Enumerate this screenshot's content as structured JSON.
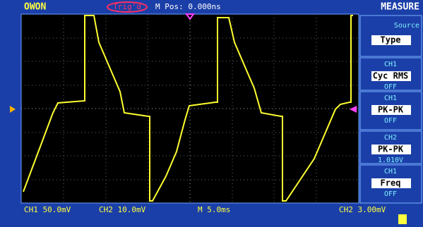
{
  "header": {
    "brand": "OWON",
    "trigger_status": "Trig'd",
    "position": "M Pos: 0.000ns",
    "menu_title": "MEASURE"
  },
  "side_panel": [
    {
      "label": "Source",
      "value": "Type"
    },
    {
      "label": "CH1",
      "value": "Cyc RMS",
      "reading": "OFF"
    },
    {
      "label": "CH1",
      "value": "PK-PK",
      "reading": "OFF"
    },
    {
      "label": "CH2",
      "value": "PK-PK",
      "reading": "1.010V"
    },
    {
      "label": "CH1",
      "value": "Freq",
      "reading": "OFF"
    }
  ],
  "status_bar": {
    "ch1": "CH1 50.0mV",
    "ch2": "CH2 10.0mV",
    "timebase": "M 5.0ms",
    "trigger": "CH2 3.00mV"
  }
}
